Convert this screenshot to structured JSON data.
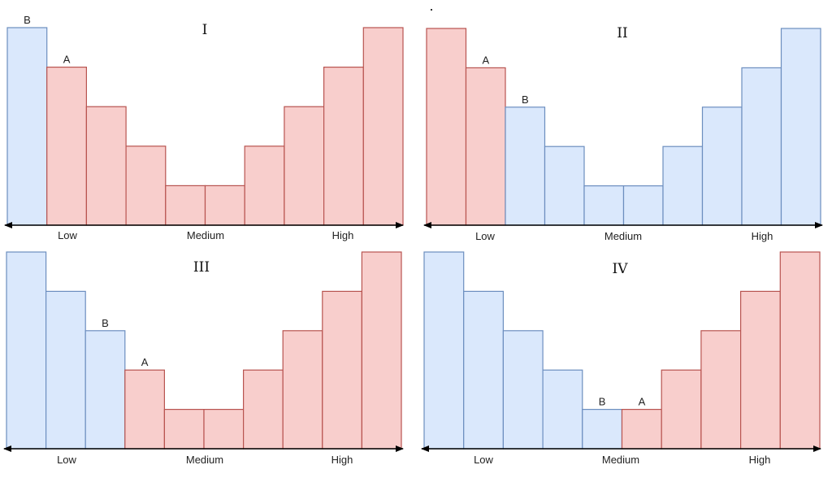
{
  "colors": {
    "a_fill": "#f8cecc",
    "a_stroke": "#b85450",
    "b_fill": "#dae8fc",
    "b_stroke": "#6c8ebf",
    "axis": "#000000"
  },
  "chart_data": [
    {
      "type": "bar",
      "title": "I",
      "x_tick_labels": [
        "Low",
        "Medium",
        "High"
      ],
      "values": [
        5,
        4,
        3,
        2,
        1,
        1,
        2,
        3,
        4,
        5
      ],
      "groups": [
        "B",
        "A",
        "A",
        "A",
        "A",
        "A",
        "A",
        "A",
        "A",
        "A"
      ],
      "markers": [
        {
          "label": "B",
          "bar": 0
        },
        {
          "label": "A",
          "bar": 1
        }
      ]
    },
    {
      "type": "bar",
      "title": "II",
      "x_tick_labels": [
        "Low",
        "Medium",
        "High"
      ],
      "values": [
        5,
        4,
        3,
        2,
        1,
        1,
        2,
        3,
        4,
        5
      ],
      "groups": [
        "A",
        "A",
        "B",
        "B",
        "B",
        "B",
        "B",
        "B",
        "B",
        "B"
      ],
      "markers": [
        {
          "label": "A",
          "bar": 1
        },
        {
          "label": "B",
          "bar": 2
        }
      ]
    },
    {
      "type": "bar",
      "title": "III",
      "x_tick_labels": [
        "Low",
        "Medium",
        "High"
      ],
      "values": [
        5,
        4,
        3,
        2,
        1,
        1,
        2,
        3,
        4,
        5
      ],
      "groups": [
        "B",
        "B",
        "B",
        "A",
        "A",
        "A",
        "A",
        "A",
        "A",
        "A"
      ],
      "markers": [
        {
          "label": "B",
          "bar": 2
        },
        {
          "label": "A",
          "bar": 3
        }
      ]
    },
    {
      "type": "bar",
      "title": "IV",
      "x_tick_labels": [
        "Low",
        "Medium",
        "High"
      ],
      "values": [
        5,
        4,
        3,
        2,
        1,
        1,
        2,
        3,
        4,
        5
      ],
      "groups": [
        "B",
        "B",
        "B",
        "B",
        "B",
        "A",
        "A",
        "A",
        "A",
        "A"
      ],
      "markers": [
        {
          "label": "B",
          "bar": 4
        },
        {
          "label": "A",
          "bar": 5
        }
      ]
    }
  ]
}
